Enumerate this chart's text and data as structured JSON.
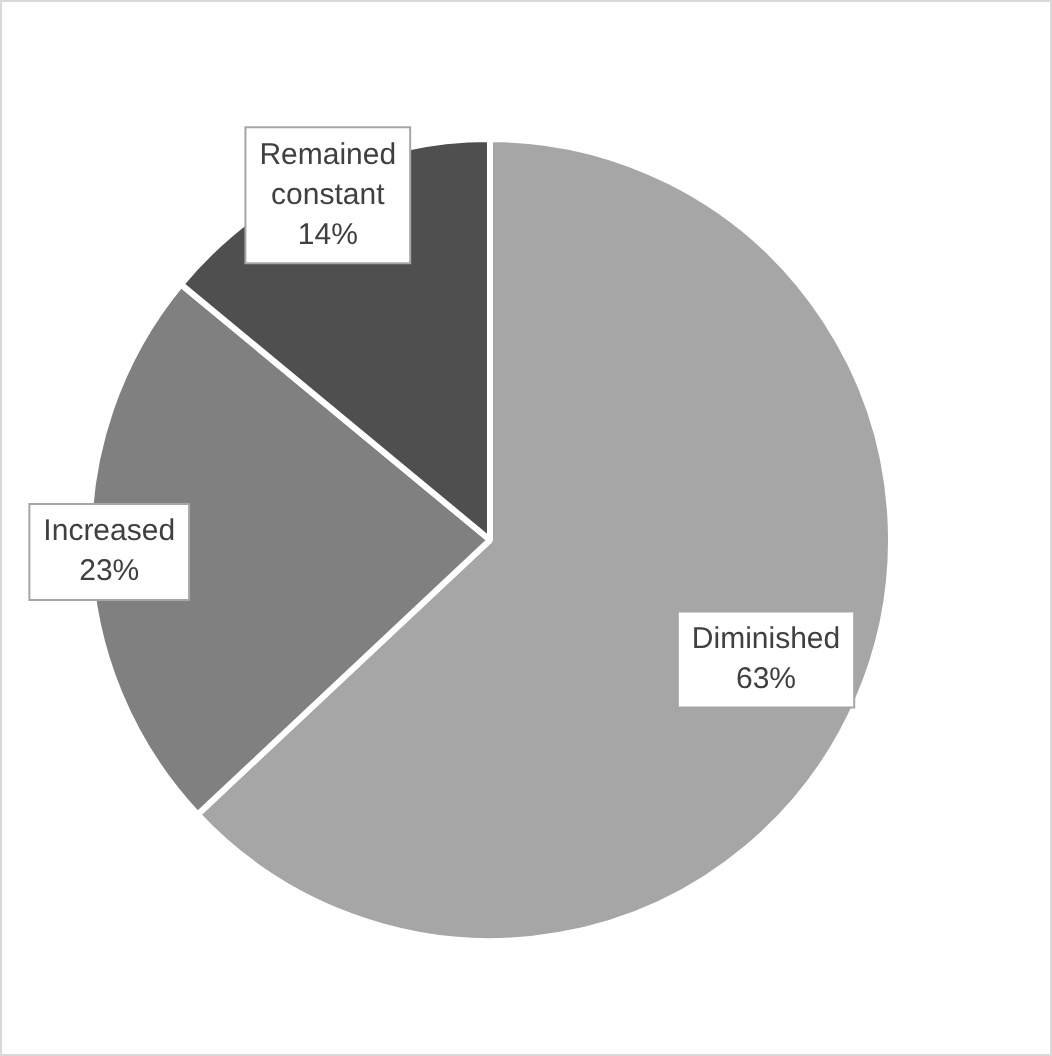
{
  "chart_data": {
    "type": "pie",
    "categories": [
      "Diminished",
      "Increased",
      "Remained constant"
    ],
    "values": [
      63,
      23,
      14
    ],
    "colors": [
      "#a6a6a6",
      "#808080",
      "#4f4f4f"
    ],
    "value_labels": [
      "63%",
      "23%",
      "14%"
    ],
    "legend": false
  }
}
